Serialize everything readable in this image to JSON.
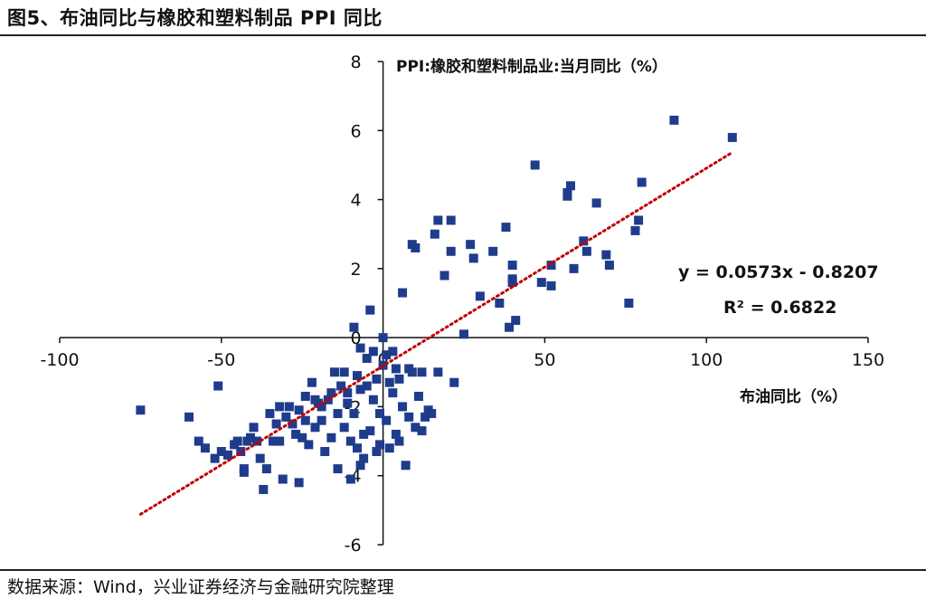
{
  "title": "图5、布油同比与橡胶和塑料制品 PPI 同比",
  "source": "数据来源：Wind，兴业证券经济与金融研究院整理",
  "chart_data": {
    "type": "scatter",
    "xlabel": "布油同比（%）",
    "ylabel": "PPI:橡胶和塑料制品业:当月同比（%）",
    "xlim": [
      -100,
      150
    ],
    "ylim": [
      -6,
      8
    ],
    "x_ticks": [
      "-100",
      "-50",
      "0",
      "50",
      "100",
      "150"
    ],
    "y_ticks": [
      "-6",
      "-4",
      "-2",
      "0",
      "2",
      "4",
      "6",
      "8"
    ],
    "marker_color": "#1f3c8c",
    "trendline": {
      "slope": 0.0573,
      "intercept": -0.8207,
      "x_range": [
        -75,
        108
      ],
      "color": "#c00000",
      "style": "dotted",
      "equation": "y = 0.0573x - 0.8207",
      "r_squared": "R² = 0.6822"
    },
    "points": [
      [
        -75,
        -2.1
      ],
      [
        -60,
        -2.3
      ],
      [
        -57,
        -3.0
      ],
      [
        -55,
        -3.2
      ],
      [
        -52,
        -3.5
      ],
      [
        -51,
        -1.4
      ],
      [
        -50,
        -3.3
      ],
      [
        -48,
        -3.4
      ],
      [
        -46,
        -3.1
      ],
      [
        -45,
        -3.0
      ],
      [
        -44,
        -3.3
      ],
      [
        -43,
        -3.8
      ],
      [
        -43,
        -3.9
      ],
      [
        -42,
        -3.0
      ],
      [
        -41,
        -2.9
      ],
      [
        -40,
        -2.6
      ],
      [
        -39,
        -3.0
      ],
      [
        -38,
        -3.5
      ],
      [
        -37,
        -4.4
      ],
      [
        -36,
        -3.8
      ],
      [
        -35,
        -2.2
      ],
      [
        -34,
        -3.0
      ],
      [
        -33,
        -2.5
      ],
      [
        -32,
        -3.0
      ],
      [
        -32,
        -2.0
      ],
      [
        -31,
        -4.1
      ],
      [
        -30,
        -2.3
      ],
      [
        -29,
        -2.0
      ],
      [
        -28,
        -2.5
      ],
      [
        -27,
        -2.8
      ],
      [
        -26,
        -4.2
      ],
      [
        -26,
        -2.1
      ],
      [
        -25,
        -2.9
      ],
      [
        -24,
        -1.7
      ],
      [
        -23,
        -3.1
      ],
      [
        -22,
        -1.3
      ],
      [
        -21,
        -1.8
      ],
      [
        -21,
        -2.6
      ],
      [
        -20,
        -1.9
      ],
      [
        -19,
        -2.4
      ],
      [
        -18,
        -3.3
      ],
      [
        -17,
        -1.8
      ],
      [
        -16,
        -2.9
      ],
      [
        -16,
        -1.6
      ],
      [
        -15,
        -1.0
      ],
      [
        -14,
        -3.8
      ],
      [
        -14,
        -2.2
      ],
      [
        -13,
        -1.4
      ],
      [
        -12,
        -1.0
      ],
      [
        -12,
        -2.6
      ],
      [
        -11,
        -1.9
      ],
      [
        -10,
        -4.1
      ],
      [
        -10,
        -3.0
      ],
      [
        -9,
        0.3
      ],
      [
        -9,
        -2.2
      ],
      [
        -8,
        -3.2
      ],
      [
        -8,
        -1.1
      ],
      [
        -7,
        -3.7
      ],
      [
        -7,
        -1.5
      ],
      [
        -6,
        -2.8
      ],
      [
        -6,
        -3.5
      ],
      [
        -5,
        -1.4
      ],
      [
        -5,
        -0.6
      ],
      [
        -4,
        0.8
      ],
      [
        -4,
        -2.7
      ],
      [
        -3,
        -1.8
      ],
      [
        -3,
        -0.4
      ],
      [
        -2,
        -3.3
      ],
      [
        -2,
        -1.2
      ],
      [
        -1,
        -2.2
      ],
      [
        -1,
        -3.1
      ],
      [
        0,
        0.0
      ],
      [
        0,
        -0.8
      ],
      [
        1,
        -0.5
      ],
      [
        1,
        -2.4
      ],
      [
        2,
        -1.3
      ],
      [
        2,
        -3.2
      ],
      [
        3,
        -0.4
      ],
      [
        3,
        -1.6
      ],
      [
        4,
        -0.9
      ],
      [
        4,
        -2.8
      ],
      [
        5,
        -1.2
      ],
      [
        5,
        -3.0
      ],
      [
        6,
        1.3
      ],
      [
        6,
        -2.0
      ],
      [
        7,
        -3.7
      ],
      [
        8,
        -0.9
      ],
      [
        8,
        -2.3
      ],
      [
        9,
        -1.0
      ],
      [
        9,
        2.7
      ],
      [
        10,
        -2.6
      ],
      [
        10,
        2.6
      ],
      [
        11,
        -1.7
      ],
      [
        12,
        -2.7
      ],
      [
        12,
        -1.0
      ],
      [
        13,
        -2.3
      ],
      [
        14,
        -2.1
      ],
      [
        15,
        -2.2
      ],
      [
        16,
        3.0
      ],
      [
        17,
        3.4
      ],
      [
        17,
        -1.0
      ],
      [
        19,
        1.8
      ],
      [
        21,
        2.5
      ],
      [
        21,
        3.4
      ],
      [
        22,
        -1.3
      ],
      [
        25,
        0.1
      ],
      [
        27,
        2.7
      ],
      [
        28,
        2.3
      ],
      [
        30,
        1.2
      ],
      [
        34,
        2.5
      ],
      [
        36,
        1.0
      ],
      [
        38,
        3.2
      ],
      [
        39,
        0.3
      ],
      [
        40,
        2.1
      ],
      [
        40,
        1.6
      ],
      [
        40,
        1.7
      ],
      [
        41,
        0.5
      ],
      [
        47,
        5.0
      ],
      [
        49,
        1.6
      ],
      [
        52,
        2.1
      ],
      [
        52,
        1.5
      ],
      [
        57,
        4.2
      ],
      [
        57,
        4.1
      ],
      [
        58,
        4.4
      ],
      [
        59,
        2.0
      ],
      [
        62,
        2.8
      ],
      [
        63,
        2.5
      ],
      [
        66,
        3.9
      ],
      [
        69,
        2.4
      ],
      [
        70,
        2.1
      ],
      [
        76,
        1.0
      ],
      [
        78,
        3.1
      ],
      [
        79,
        3.4
      ],
      [
        80,
        4.5
      ],
      [
        90,
        6.3
      ],
      [
        108,
        5.8
      ],
      [
        -7,
        -0.3
      ],
      [
        -11,
        -1.6
      ],
      [
        -19,
        -2.0
      ],
      [
        -24,
        -2.4
      ]
    ]
  }
}
